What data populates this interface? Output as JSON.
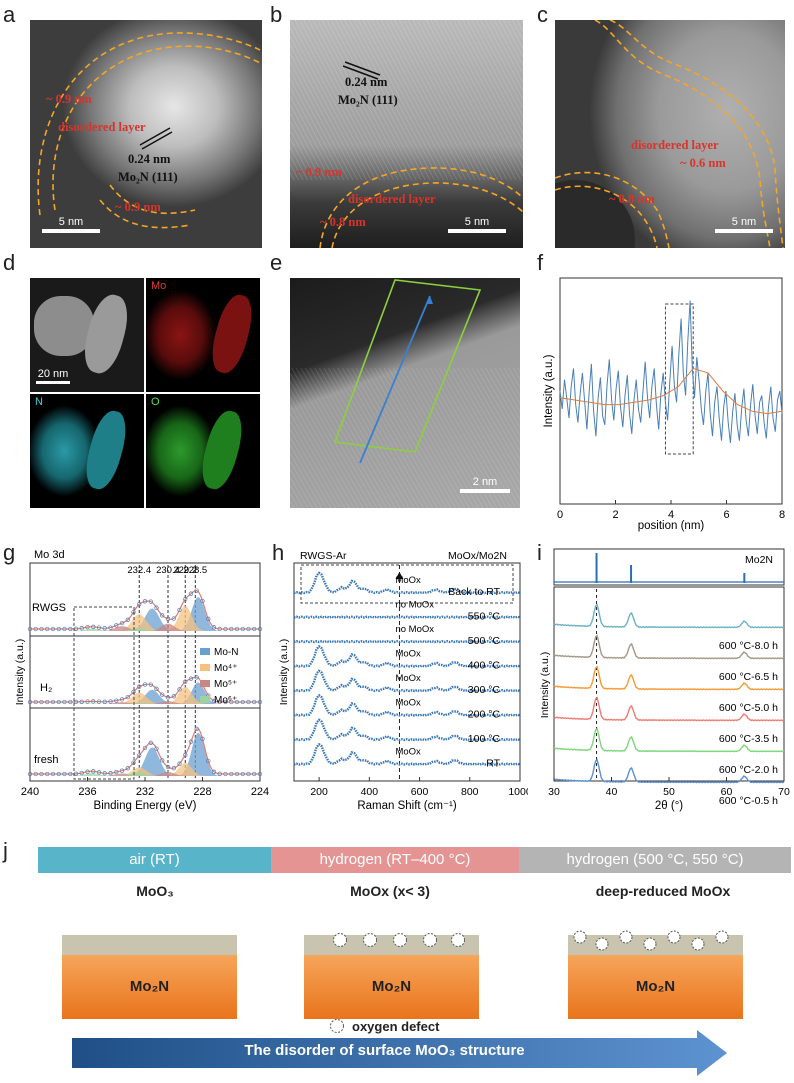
{
  "panels": {
    "a": "a",
    "b": "b",
    "c": "c",
    "d": "d",
    "e": "e",
    "f": "f",
    "g": "g",
    "h": "h",
    "i": "i",
    "j": "j"
  },
  "panel_a": {
    "thick_top": "~ 0.9 nm",
    "thick_bottom": "~ 0.9 nm",
    "layer": "disordered layer",
    "spacing": "0.24 nm",
    "phase": "Mo₂N (111)",
    "scale": "5 nm"
  },
  "panel_b": {
    "spacing": "0.24 nm",
    "phase": "Mo₂N (111)",
    "thick_left": "~ 0.9 nm",
    "layer": "disordered layer",
    "thick_bottom": "~ 0.8 nm",
    "scale": "5 nm"
  },
  "panel_c": {
    "layer": "disordered layer",
    "thick_right": "~ 0.6 nm",
    "thick_left": "~ 0.8 nm",
    "scale": "5 nm"
  },
  "panel_d": {
    "scale": "20 nm",
    "mo": "Mo",
    "n": "N",
    "o": "O"
  },
  "panel_e": {
    "scale": "2 nm"
  },
  "chart_data": [
    {
      "panel": "f",
      "type": "line",
      "xlabel": "position (nm)",
      "ylabel": "Intensity (a.u.)",
      "xlim": [
        0,
        8
      ],
      "xticks": [
        0,
        2,
        4,
        6,
        8
      ],
      "series": [
        {
          "name": "raw profile",
          "values": [
            0.5,
            0.42,
            0.55,
            0.47,
            0.38,
            0.52,
            0.6,
            0.44,
            0.36,
            0.49,
            0.58,
            0.45,
            0.33,
            0.5,
            0.62,
            0.41,
            0.3,
            0.47,
            0.56,
            0.39,
            0.35,
            0.53,
            0.64,
            0.46,
            0.37,
            0.51,
            0.59,
            0.43,
            0.34,
            0.48,
            0.57,
            0.4,
            0.31,
            0.46,
            0.55,
            0.42,
            0.36,
            0.5,
            0.63,
            0.47,
            0.38,
            0.52,
            0.6,
            0.44,
            0.33,
            0.49,
            0.58,
            0.45,
            0.37,
            0.55,
            0.7,
            0.52,
            0.45,
            0.66,
            0.82,
            0.58,
            0.48,
            0.72,
            0.9,
            0.6,
            0.47,
            0.65,
            0.55,
            0.42,
            0.35,
            0.5,
            0.58,
            0.4,
            0.3,
            0.45,
            0.52,
            0.38,
            0.28,
            0.43,
            0.5,
            0.36,
            0.27,
            0.41,
            0.49,
            0.35,
            0.28,
            0.42,
            0.51,
            0.37,
            0.3,
            0.44,
            0.53,
            0.39,
            0.31,
            0.45,
            0.48,
            0.36,
            0.29,
            0.43,
            0.52,
            0.38,
            0.32,
            0.46,
            0.5,
            0.4
          ]
        },
        {
          "name": "smoothed",
          "values": [
            0.47,
            0.46,
            0.45,
            0.44,
            0.44,
            0.45,
            0.46,
            0.48,
            0.52,
            0.6,
            0.58,
            0.5,
            0.44,
            0.41,
            0.4,
            0.41
          ]
        }
      ],
      "highlight": [
        3.8,
        4.8
      ]
    },
    {
      "panel": "g",
      "type": "line",
      "title": "Mo 3d",
      "xlabel": "Binding Energy (eV)",
      "ylabel": "Intensity (a.u.)",
      "xlim": [
        240,
        224
      ],
      "xticks": [
        240,
        236,
        232,
        228,
        224
      ],
      "peak_labels": [
        "232.4",
        "230.4",
        "229.2",
        "228.5"
      ],
      "samples": [
        "RWGS",
        "H₂",
        "fresh"
      ],
      "legend": [
        "Mo-N",
        "Mo⁴⁺",
        "Mo⁵⁺",
        "Mo⁶⁺"
      ],
      "components": {
        "Mo-N": [
          228.3,
          231.5
        ],
        "Mo4+": [
          229.2,
          232.4
        ],
        "Mo5+": [
          230.4,
          233.6
        ],
        "Mo6+": [
          232.5,
          235.7
        ]
      }
    },
    {
      "panel": "h",
      "type": "line",
      "xlabel": "Raman Shift (cm⁻¹)",
      "ylabel": "Intensity (a.u.)",
      "xlim": [
        100,
        1000
      ],
      "xticks": [
        200,
        400,
        600,
        800,
        1000
      ],
      "box_left": "RWGS-Ar",
      "box_right": "MoOx/Mo2N",
      "traces": [
        {
          "label": "Back to RT",
          "note": "MoOx"
        },
        {
          "label": "550 °C",
          "note": "no MoOx"
        },
        {
          "label": "500 °C",
          "note": "no MoOx"
        },
        {
          "label": "400 °C",
          "note": "MoOx"
        },
        {
          "label": "300 °C",
          "note": "MoOx"
        },
        {
          "label": "200 °C",
          "note": "MoOx"
        },
        {
          "label": "100 °C",
          "note": ""
        },
        {
          "label": "RT",
          "note": "MoOx"
        }
      ],
      "peaks_cm": [
        195,
        215,
        290,
        335,
        380,
        470,
        665,
        740
      ]
    },
    {
      "panel": "i",
      "type": "line",
      "xlabel": "2θ (°)",
      "ylabel": "Intensity (a.u.)",
      "xlim": [
        30,
        70
      ],
      "xticks": [
        30,
        40,
        50,
        60,
        70
      ],
      "reference": "Mo2N",
      "reference_peaks": [
        37.4,
        43.4,
        63.1
      ],
      "traces": [
        {
          "label": "600 °C-8.0 h",
          "color": "#6bb3c2"
        },
        {
          "label": "600 °C-6.5 h",
          "color": "#a39888"
        },
        {
          "label": "600 °C-5.0 h",
          "color": "#f29b37"
        },
        {
          "label": "600 °C-3.5 h",
          "color": "#ef7b73"
        },
        {
          "label": "600 °C-2.0 h",
          "color": "#7ed57e"
        },
        {
          "label": "600 °C-0.5 h",
          "color": "#5c8fd1"
        }
      ]
    }
  ],
  "panel_j": {
    "stage1": "air (RT)",
    "stage2": "hydrogen (RT–400 °C)",
    "stage3": "hydrogen (500 °C, 550 °C)",
    "title1": "MoO₃",
    "title2_main": "MoOx",
    "title2_cond": " (x< 3)",
    "title3_main": "deep-reduced MoOx",
    "substrate": "Mo₂N",
    "legend": "oxygen defect",
    "arrow": "The disorder of surface MoO₃ structure"
  }
}
